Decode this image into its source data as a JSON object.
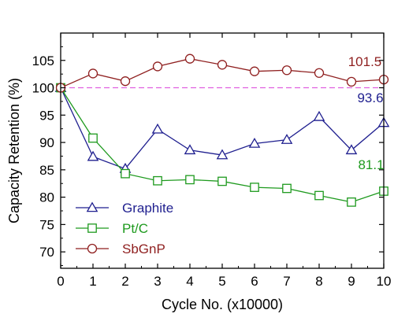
{
  "chart_data": {
    "type": "line",
    "xlabel": "Cycle No. (x10000)",
    "ylabel": "Capacity Retention (%)",
    "xlim": [
      0,
      10
    ],
    "ylim": [
      67,
      110
    ],
    "x_ticks": [
      0,
      1,
      2,
      3,
      4,
      5,
      6,
      7,
      8,
      9,
      10
    ],
    "y_ticks": [
      70,
      75,
      80,
      85,
      90,
      95,
      100,
      105
    ],
    "grid": false,
    "legend_position": "bottom-left",
    "reference_line": {
      "y": 100,
      "style": "dashed",
      "color": "#e060e0"
    },
    "series": [
      {
        "name": "Graphite",
        "marker": "triangle",
        "color": "#1f1f8f",
        "x": [
          0,
          1,
          2,
          3,
          4,
          5,
          6,
          7,
          8,
          9,
          10
        ],
        "values": [
          100,
          87.4,
          85.2,
          92.4,
          88.6,
          87.7,
          89.8,
          90.5,
          94.7,
          88.6,
          93.6
        ],
        "end_label": "93.6"
      },
      {
        "name": "Pt/C",
        "marker": "square",
        "color": "#1e9a1e",
        "x": [
          0,
          1,
          2,
          3,
          4,
          5,
          6,
          7,
          8,
          9,
          10
        ],
        "values": [
          100,
          90.8,
          84.3,
          83.0,
          83.2,
          82.9,
          81.8,
          81.6,
          80.3,
          79.1,
          81.1
        ],
        "end_label": "81.1"
      },
      {
        "name": "SbGnP",
        "marker": "circle",
        "color": "#8f1f1f",
        "x": [
          0,
          1,
          2,
          3,
          4,
          5,
          6,
          7,
          8,
          9,
          10
        ],
        "values": [
          100,
          102.6,
          101.2,
          103.9,
          105.3,
          104.2,
          103.0,
          103.2,
          102.7,
          101.1,
          101.5
        ],
        "end_label": "101.5"
      }
    ]
  }
}
